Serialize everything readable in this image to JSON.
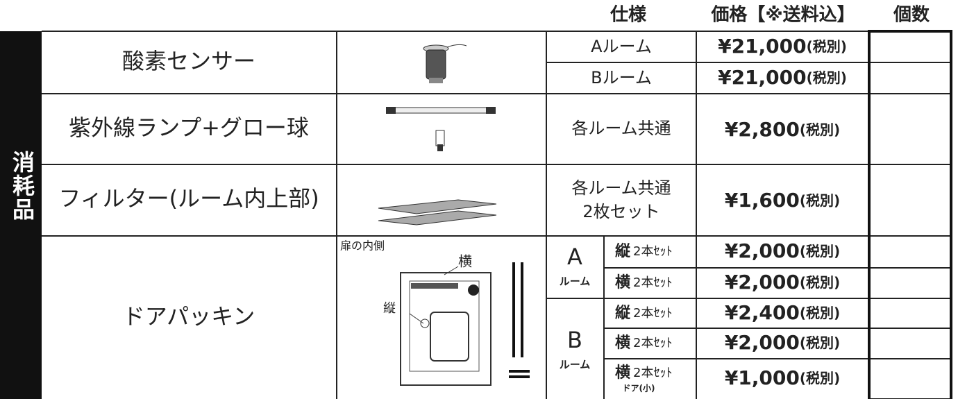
{
  "header": {
    "spec": "仕様",
    "price": "価格【※送料込】",
    "qty": "個数"
  },
  "side_label": "消耗品",
  "rows": [
    {
      "name": "酸素センサー",
      "items": [
        {
          "spec": "Aルーム",
          "price": "¥21,000",
          "tax": "(税別)"
        },
        {
          "spec": "Bルーム",
          "price": "¥21,000",
          "tax": "(税別)"
        }
      ]
    },
    {
      "name": "紫外線ランプ+グロー球",
      "items": [
        {
          "spec": "各ルーム共通",
          "price": "¥2,800",
          "tax": "(税別)"
        }
      ]
    },
    {
      "name": "フィルター(ルーム内上部)",
      "items": [
        {
          "spec": "各ルーム共通",
          "spec2": "2枚セット",
          "price": "¥1,600",
          "tax": "(税別)"
        }
      ]
    },
    {
      "name": "ドアパッキン",
      "image_labels": {
        "inner": "扉の内側",
        "horizontal": "横",
        "vertical": "縦"
      },
      "groups": [
        {
          "room": "A",
          "room_suffix": "ルーム",
          "items": [
            {
              "kind": "縦",
              "set": "2本ｾｯﾄ",
              "price": "¥2,000",
              "tax": "(税別)"
            },
            {
              "kind": "横",
              "set": "2本ｾｯﾄ",
              "price": "¥2,000",
              "tax": "(税別)"
            }
          ]
        },
        {
          "room": "B",
          "room_suffix": "ルーム",
          "items": [
            {
              "kind": "縦",
              "set": "2本ｾｯﾄ",
              "price": "¥2,400",
              "tax": "(税別)"
            },
            {
              "kind": "横",
              "set": "2本ｾｯﾄ",
              "price": "¥2,000",
              "tax": "(税別)"
            },
            {
              "kind": "横",
              "set": "2本ｾｯﾄ",
              "note": "ドア(小)",
              "price": "¥1,000",
              "tax": "(税別)"
            }
          ]
        }
      ]
    }
  ]
}
